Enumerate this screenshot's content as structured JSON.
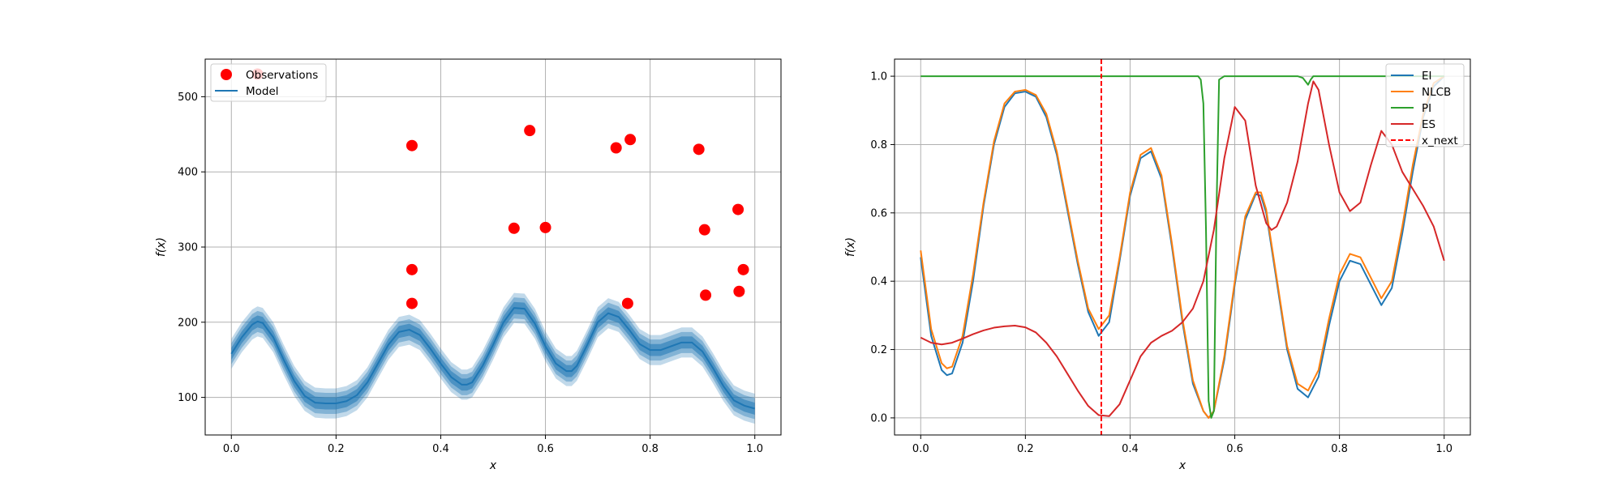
{
  "colors": {
    "observations": "#ff0000",
    "model": "#1f77b4",
    "ei": "#1f77b4",
    "nlcb": "#ff7f0e",
    "pi": "#2ca02c",
    "es": "#d62728",
    "x_next": "#ff0000",
    "grid": "#b0b0b0"
  },
  "chart_data": [
    {
      "type": "scatter",
      "title": "",
      "xlabel": "x",
      "ylabel": "f(x)",
      "xlim": [
        -0.05,
        1.05
      ],
      "ylim": [
        50,
        550
      ],
      "xticks": [
        0.0,
        0.2,
        0.4,
        0.6,
        0.8,
        1.0
      ],
      "xtick_labels": [
        "0.0",
        "0.2",
        "0.4",
        "0.6",
        "0.8",
        "1.0"
      ],
      "yticks": [
        100,
        200,
        300,
        400,
        500
      ],
      "ytick_labels": [
        "100",
        "200",
        "300",
        "400",
        "500"
      ],
      "grid": true,
      "legend": {
        "position": "top-left",
        "entries": [
          "Observations",
          "Model"
        ]
      },
      "series": [
        {
          "name": "Observations",
          "kind": "scatter",
          "points": [
            [
              0.05,
              530
            ],
            [
              0.345,
              435
            ],
            [
              0.345,
              270
            ],
            [
              0.345,
              225
            ],
            [
              0.54,
              325
            ],
            [
              0.57,
              455
            ],
            [
              0.6,
              326
            ],
            [
              0.735,
              432
            ],
            [
              0.757,
              225
            ],
            [
              0.762,
              443
            ],
            [
              0.893,
              430
            ],
            [
              0.904,
              323
            ],
            [
              0.906,
              236
            ],
            [
              0.968,
              350
            ],
            [
              0.97,
              241
            ],
            [
              0.978,
              270
            ]
          ]
        },
        {
          "name": "Model",
          "kind": "line_with_bands",
          "x": [
            0.0,
            0.02,
            0.04,
            0.05,
            0.06,
            0.08,
            0.1,
            0.12,
            0.14,
            0.16,
            0.18,
            0.2,
            0.22,
            0.24,
            0.26,
            0.28,
            0.3,
            0.32,
            0.34,
            0.36,
            0.38,
            0.4,
            0.42,
            0.44,
            0.45,
            0.46,
            0.48,
            0.5,
            0.52,
            0.54,
            0.56,
            0.58,
            0.6,
            0.62,
            0.64,
            0.65,
            0.66,
            0.68,
            0.7,
            0.72,
            0.74,
            0.76,
            0.78,
            0.8,
            0.82,
            0.84,
            0.86,
            0.88,
            0.9,
            0.92,
            0.94,
            0.96,
            0.98,
            1.0
          ],
          "y": [
            158,
            180,
            197,
            201,
            199,
            180,
            150,
            122,
            102,
            93,
            92,
            92,
            95,
            103,
            120,
            145,
            170,
            187,
            190,
            183,
            165,
            145,
            127,
            117,
            117,
            120,
            142,
            170,
            200,
            219,
            218,
            198,
            168,
            145,
            135,
            135,
            142,
            170,
            200,
            212,
            207,
            190,
            171,
            163,
            163,
            168,
            173,
            173,
            161,
            139,
            115,
            96,
            89,
            85
          ],
          "band_half_widths": [
            8,
            14,
            20
          ]
        }
      ]
    },
    {
      "type": "line",
      "title": "",
      "xlabel": "x",
      "ylabel": "f(x)",
      "xlim": [
        -0.05,
        1.05
      ],
      "ylim": [
        -0.05,
        1.05
      ],
      "xticks": [
        0.0,
        0.2,
        0.4,
        0.6,
        0.8,
        1.0
      ],
      "xtick_labels": [
        "0.0",
        "0.2",
        "0.4",
        "0.6",
        "0.8",
        "1.0"
      ],
      "yticks": [
        0.0,
        0.2,
        0.4,
        0.6,
        0.8,
        1.0
      ],
      "ytick_labels": [
        "0.0",
        "0.2",
        "0.4",
        "0.6",
        "0.8",
        "1.0"
      ],
      "grid": true,
      "legend": {
        "position": "top-right",
        "entries": [
          "EI",
          "NLCB",
          "PI",
          "ES",
          "x_next"
        ]
      },
      "series": [
        {
          "name": "EI",
          "x": [
            0.0,
            0.02,
            0.04,
            0.05,
            0.06,
            0.08,
            0.1,
            0.12,
            0.14,
            0.16,
            0.18,
            0.2,
            0.22,
            0.24,
            0.26,
            0.28,
            0.3,
            0.32,
            0.34,
            0.36,
            0.38,
            0.4,
            0.42,
            0.44,
            0.46,
            0.48,
            0.5,
            0.52,
            0.54,
            0.55,
            0.56,
            0.58,
            0.6,
            0.62,
            0.64,
            0.65,
            0.66,
            0.68,
            0.7,
            0.72,
            0.74,
            0.76,
            0.78,
            0.8,
            0.82,
            0.84,
            0.86,
            0.88,
            0.9,
            0.92,
            0.94,
            0.96,
            0.98,
            1.0
          ],
          "y": [
            0.47,
            0.24,
            0.14,
            0.125,
            0.13,
            0.22,
            0.4,
            0.62,
            0.8,
            0.91,
            0.95,
            0.955,
            0.94,
            0.88,
            0.77,
            0.61,
            0.45,
            0.31,
            0.24,
            0.28,
            0.46,
            0.65,
            0.76,
            0.78,
            0.7,
            0.5,
            0.28,
            0.1,
            0.02,
            0.0,
            0.02,
            0.17,
            0.39,
            0.58,
            0.655,
            0.65,
            0.6,
            0.4,
            0.2,
            0.085,
            0.06,
            0.12,
            0.27,
            0.4,
            0.46,
            0.45,
            0.39,
            0.33,
            0.38,
            0.54,
            0.72,
            0.88,
            0.97,
            1.0
          ]
        },
        {
          "name": "NLCB",
          "x": [
            0.0,
            0.02,
            0.04,
            0.05,
            0.06,
            0.08,
            0.1,
            0.12,
            0.14,
            0.16,
            0.18,
            0.2,
            0.22,
            0.24,
            0.26,
            0.28,
            0.3,
            0.32,
            0.34,
            0.36,
            0.38,
            0.4,
            0.42,
            0.44,
            0.46,
            0.48,
            0.5,
            0.52,
            0.54,
            0.55,
            0.56,
            0.58,
            0.6,
            0.62,
            0.64,
            0.65,
            0.66,
            0.68,
            0.7,
            0.72,
            0.74,
            0.76,
            0.78,
            0.8,
            0.82,
            0.84,
            0.86,
            0.88,
            0.9,
            0.92,
            0.94,
            0.96,
            0.98,
            1.0
          ],
          "y": [
            0.49,
            0.26,
            0.16,
            0.145,
            0.15,
            0.24,
            0.42,
            0.63,
            0.81,
            0.92,
            0.955,
            0.96,
            0.945,
            0.89,
            0.78,
            0.62,
            0.46,
            0.32,
            0.26,
            0.3,
            0.47,
            0.66,
            0.77,
            0.79,
            0.71,
            0.51,
            0.29,
            0.11,
            0.02,
            0.0,
            0.02,
            0.18,
            0.4,
            0.59,
            0.66,
            0.66,
            0.61,
            0.41,
            0.21,
            0.1,
            0.08,
            0.14,
            0.29,
            0.42,
            0.48,
            0.47,
            0.41,
            0.35,
            0.4,
            0.56,
            0.74,
            0.89,
            0.98,
            1.0
          ]
        },
        {
          "name": "PI",
          "x": [
            0.0,
            0.52,
            0.53,
            0.535,
            0.54,
            0.545,
            0.55,
            0.555,
            0.56,
            0.565,
            0.57,
            0.58,
            0.72,
            0.73,
            0.735,
            0.74,
            0.745,
            0.75,
            0.76,
            0.8,
            0.9,
            1.0
          ],
          "y": [
            1.0,
            1.0,
            1.0,
            0.99,
            0.92,
            0.55,
            0.05,
            0.0,
            0.02,
            0.6,
            0.99,
            1.0,
            1.0,
            0.995,
            0.985,
            0.975,
            0.99,
            1.0,
            1.0,
            1.0,
            1.0,
            1.0
          ]
        },
        {
          "name": "ES",
          "x": [
            0.0,
            0.02,
            0.04,
            0.06,
            0.08,
            0.1,
            0.12,
            0.14,
            0.16,
            0.18,
            0.2,
            0.22,
            0.24,
            0.26,
            0.28,
            0.3,
            0.32,
            0.34,
            0.36,
            0.38,
            0.4,
            0.42,
            0.44,
            0.46,
            0.48,
            0.5,
            0.52,
            0.54,
            0.56,
            0.58,
            0.6,
            0.62,
            0.64,
            0.66,
            0.67,
            0.68,
            0.7,
            0.72,
            0.74,
            0.75,
            0.76,
            0.78,
            0.8,
            0.82,
            0.84,
            0.86,
            0.88,
            0.9,
            0.92,
            0.94,
            0.96,
            0.98,
            1.0
          ],
          "y": [
            0.235,
            0.22,
            0.215,
            0.22,
            0.232,
            0.245,
            0.256,
            0.264,
            0.268,
            0.27,
            0.265,
            0.25,
            0.22,
            0.18,
            0.13,
            0.08,
            0.035,
            0.008,
            0.005,
            0.04,
            0.11,
            0.18,
            0.22,
            0.24,
            0.255,
            0.28,
            0.32,
            0.4,
            0.55,
            0.76,
            0.91,
            0.87,
            0.68,
            0.57,
            0.55,
            0.56,
            0.63,
            0.75,
            0.92,
            0.985,
            0.96,
            0.8,
            0.66,
            0.605,
            0.63,
            0.74,
            0.84,
            0.8,
            0.72,
            0.67,
            0.62,
            0.56,
            0.46
          ]
        },
        {
          "name": "x_next",
          "kind": "vline",
          "x": 0.345
        }
      ]
    }
  ]
}
